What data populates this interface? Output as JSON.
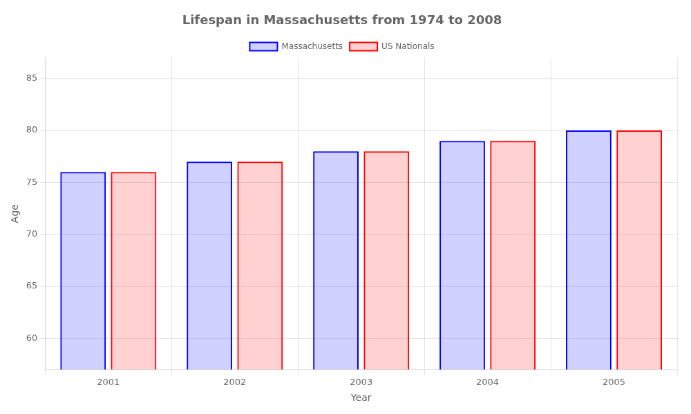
{
  "chart_data": {
    "type": "bar",
    "title": "Lifespan in Massachusetts from 1974 to 2008",
    "xlabel": "Year",
    "ylabel": "Age",
    "categories": [
      "2001",
      "2002",
      "2003",
      "2004",
      "2005"
    ],
    "series": [
      {
        "name": "Massachusetts",
        "color": "#0000ff",
        "values": [
          76,
          77,
          78,
          79,
          80
        ]
      },
      {
        "name": "US Nationals",
        "color": "#ff0000",
        "values": [
          76,
          77,
          78,
          79,
          80
        ]
      }
    ],
    "ylim": [
      57,
      87
    ],
    "yticks": [
      60,
      65,
      70,
      75,
      80,
      85
    ],
    "grid": true,
    "legend": "top"
  }
}
